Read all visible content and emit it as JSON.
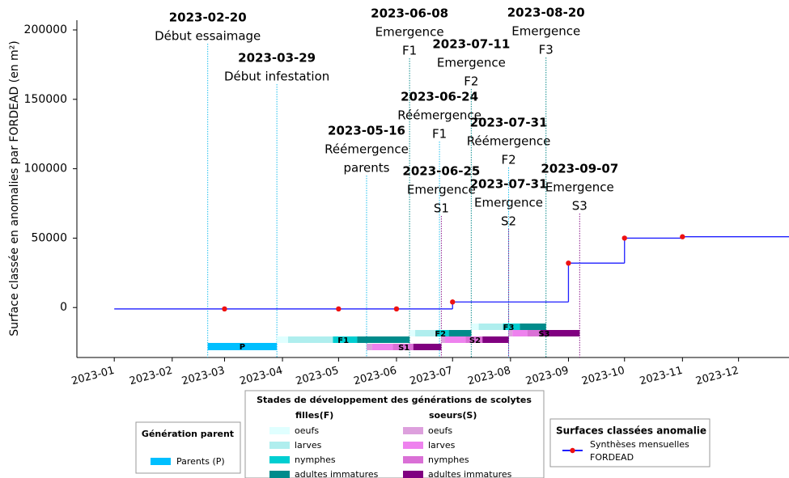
{
  "chart_data": {
    "type": "timeline",
    "ylabel": "Surface classée en anomalies par FORDEAD (en m²)",
    "ylim": [
      -36000,
      207000
    ],
    "yticks": [
      0,
      50000,
      100000,
      150000,
      200000
    ],
    "xlim": [
      "2022-12-12",
      "2023-12-28"
    ],
    "xticks": [
      "2023-01",
      "2023-02",
      "2023-03",
      "2023-04",
      "2023-05",
      "2023-06",
      "2023-07",
      "2023-08",
      "2023-09",
      "2023-10",
      "2023-11",
      "2023-12"
    ],
    "series": [
      {
        "name": [
          "Synthèses mensuelles",
          "FORDEAD"
        ],
        "color": "#1f1fff",
        "marker_color": "#ee1111",
        "x": [
          "2023-01",
          "2023-03",
          "2023-05",
          "2023-06",
          "2023-07",
          "2023-09",
          "2023-10",
          "2023-11"
        ],
        "values": [
          -1000,
          -1000,
          -1000,
          -1000,
          4000,
          32000,
          50000,
          51000
        ],
        "markers": [
          false,
          true,
          true,
          true,
          true,
          true,
          true,
          true
        ]
      }
    ],
    "events": [
      {
        "date": "2023-02-20",
        "label": [
          "Début essaimage"
        ],
        "color": "#1ebfee"
      },
      {
        "date": "2023-03-29",
        "label": [
          "Début infestation"
        ],
        "color": "#1ebfee"
      },
      {
        "date": "2023-05-16",
        "label": [
          "Réémergence",
          "parents"
        ],
        "color": "#1ebfee"
      },
      {
        "date": "2023-06-08",
        "label": [
          "Emergence",
          "F1"
        ],
        "color": "#0e8c8c"
      },
      {
        "date": "2023-06-24",
        "label": [
          "Réémergence",
          "F1"
        ],
        "color": "#1ebfee"
      },
      {
        "date": "2023-06-25",
        "label": [
          "Emergence",
          "S1"
        ],
        "color": "#8b1a8b"
      },
      {
        "date": "2023-07-11",
        "label": [
          "Emergence",
          "F2"
        ],
        "color": "#0e8c8c"
      },
      {
        "date": "2023-07-31",
        "label": [
          "Réémergence",
          "F2"
        ],
        "color": "#1ebfee"
      },
      {
        "date": "2023-07-31",
        "label": [
          "Emergence",
          "S2"
        ],
        "color": "#8b1a8b"
      },
      {
        "date": "2023-08-20",
        "label": [
          "Emergence",
          "F3"
        ],
        "color": "#0e8c8c"
      },
      {
        "date": "2023-09-07",
        "label": [
          "Emergence",
          "S3"
        ],
        "color": "#8b1a8b"
      }
    ],
    "parent": {
      "label": "P",
      "name": "Parents (P)",
      "color": "#00bfff",
      "start": "2023-02-20",
      "end": "2023-03-29"
    },
    "generations": [
      {
        "label": "F1",
        "group": 0,
        "segments": [
          [
            "2023-03-29",
            "2023-04-04"
          ],
          [
            "2023-04-04",
            "2023-04-28"
          ],
          [
            "2023-04-28",
            "2023-05-11"
          ],
          [
            "2023-05-11",
            "2023-06-08"
          ]
        ]
      },
      {
        "label": "S1",
        "group": 1,
        "segments": [
          [
            "2023-05-16",
            "2023-05-19"
          ],
          [
            "2023-05-19",
            "2023-05-30"
          ],
          [
            "2023-05-30",
            "2023-06-10"
          ],
          [
            "2023-06-10",
            "2023-06-25"
          ]
        ]
      },
      {
        "label": "F2",
        "group": 0,
        "segments": [
          [
            "2023-06-08",
            "2023-06-11"
          ],
          [
            "2023-06-11",
            "2023-06-22"
          ],
          [
            "2023-06-22",
            "2023-06-29"
          ],
          [
            "2023-06-29",
            "2023-07-11"
          ]
        ]
      },
      {
        "label": "S2",
        "group": 1,
        "segments": [
          [
            "2023-06-25",
            "2023-06-27"
          ],
          [
            "2023-06-27",
            "2023-07-08"
          ],
          [
            "2023-07-08",
            "2023-07-17"
          ],
          [
            "2023-07-17",
            "2023-07-31"
          ]
        ]
      },
      {
        "label": "F3",
        "group": 0,
        "segments": [
          [
            "2023-07-11",
            "2023-07-15"
          ],
          [
            "2023-07-15",
            "2023-07-28"
          ],
          [
            "2023-07-28",
            "2023-08-06"
          ],
          [
            "2023-08-06",
            "2023-08-20"
          ]
        ]
      },
      {
        "label": "S3",
        "group": 1,
        "segments": [
          [
            "2023-07-31",
            "2023-08-02"
          ],
          [
            "2023-08-02",
            "2023-08-10"
          ],
          [
            "2023-08-10",
            "2023-08-17"
          ],
          [
            "2023-08-17",
            "2023-09-07"
          ]
        ]
      }
    ],
    "legend_parent": {
      "title": "Génération parent"
    },
    "legend_stages": {
      "title": "Stades de développement des générations de scolytes",
      "groups": [
        {
          "name": "filles(F)",
          "stages": [
            {
              "name": "oeufs",
              "color": "#e0ffff"
            },
            {
              "name": "larves",
              "color": "#afeeee"
            },
            {
              "name": "nymphes",
              "color": "#00ced1"
            },
            {
              "name": "adultes immatures",
              "color": "#008b8b"
            }
          ]
        },
        {
          "name": "soeurs(S)",
          "stages": [
            {
              "name": "oeufs",
              "color": "#dda0dd"
            },
            {
              "name": "larves",
              "color": "#ee82ee"
            },
            {
              "name": "nymphes",
              "color": "#da70d6"
            },
            {
              "name": "adultes immatures",
              "color": "#800080"
            }
          ]
        }
      ]
    },
    "legend_line": {
      "title": "Surfaces classées anomalie"
    }
  }
}
